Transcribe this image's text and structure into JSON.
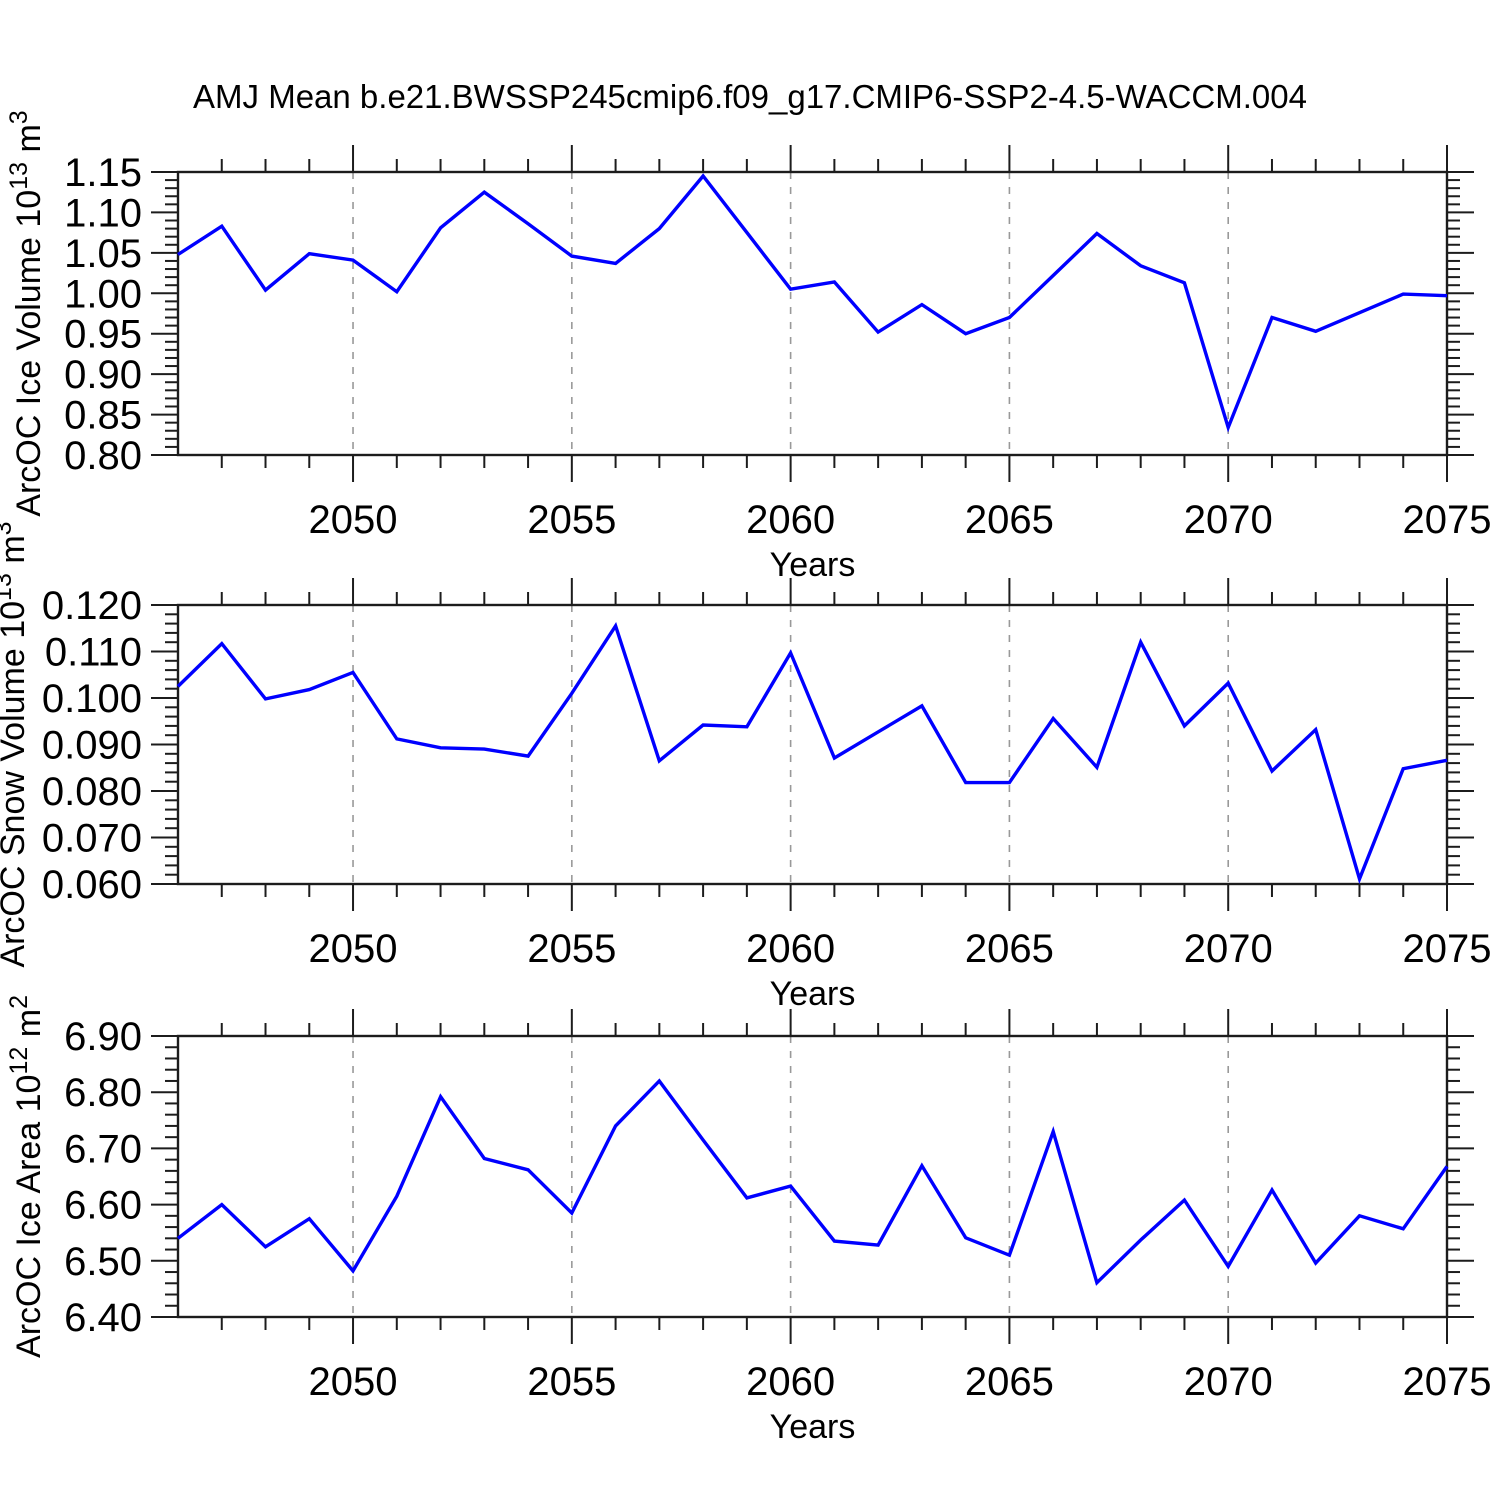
{
  "title": "AMJ Mean b.e21.BWSSP245cmip6.f09_g17.CMIP6-SSP2-4.5-WACCM.004",
  "line_color": "#0000ff",
  "chart_data": [
    {
      "type": "line",
      "series_name": "arcoc-ice-volume",
      "ylabel": "ArcOC Ice Volume 10^13 m^3",
      "ylabel_parts": [
        "ArcOC Ice Volume 10",
        "13",
        " m",
        "3"
      ],
      "xlabel": "Years",
      "x": [
        2046,
        2047,
        2048,
        2049,
        2050,
        2051,
        2052,
        2053,
        2054,
        2055,
        2056,
        2057,
        2058,
        2059,
        2060,
        2061,
        2062,
        2063,
        2064,
        2065,
        2066,
        2067,
        2068,
        2069,
        2070,
        2071,
        2072,
        2073,
        2074,
        2075
      ],
      "values": [
        1.048,
        1.083,
        1.004,
        1.049,
        1.041,
        1.002,
        1.081,
        1.125,
        1.086,
        1.046,
        1.037,
        1.08,
        1.145,
        1.075,
        1.005,
        1.014,
        0.952,
        0.986,
        0.95,
        0.97,
        1.022,
        1.074,
        1.034,
        1.013,
        0.834,
        0.97,
        0.953,
        0.976,
        0.999,
        0.997
      ],
      "xlim": [
        2046,
        2075
      ],
      "ylim": [
        0.8,
        1.15
      ],
      "xticks": [
        2050,
        2055,
        2060,
        2065,
        2070,
        2075
      ],
      "xtick_labels": [
        "2050",
        "2055",
        "2060",
        "2065",
        "2070",
        "2075"
      ],
      "x_minor_step": 1,
      "yticks": [
        0.8,
        0.85,
        0.9,
        0.95,
        1.0,
        1.05,
        1.1,
        1.15
      ],
      "ytick_labels": [
        "0.80",
        "0.85",
        "0.90",
        "0.95",
        "1.00",
        "1.05",
        "1.10",
        "1.15"
      ],
      "y_minor_step": 0.01,
      "grid": "vertical dashed at major x ticks",
      "line_color": "#0000ff"
    },
    {
      "type": "line",
      "series_name": "arcoc-snow-volume",
      "ylabel": "ArcOC Snow Volume 10^13 m^3",
      "ylabel_parts": [
        "ArcOC Snow Volume 10",
        "13",
        " m",
        "3"
      ],
      "xlabel": "Years",
      "x": [
        2046,
        2047,
        2048,
        2049,
        2050,
        2051,
        2052,
        2053,
        2054,
        2055,
        2056,
        2057,
        2058,
        2059,
        2060,
        2061,
        2062,
        2063,
        2064,
        2065,
        2066,
        2067,
        2068,
        2069,
        2070,
        2071,
        2072,
        2073,
        2074,
        2075
      ],
      "values": [
        0.1025,
        0.1117,
        0.0998,
        0.1018,
        0.1055,
        0.0912,
        0.0893,
        0.089,
        0.0875,
        0.101,
        0.1155,
        0.0865,
        0.0942,
        0.0938,
        0.1097,
        0.0871,
        0.0927,
        0.0983,
        0.0818,
        0.0818,
        0.0956,
        0.0851,
        0.112,
        0.094,
        0.1032,
        0.0843,
        0.0932,
        0.0611,
        0.0848,
        0.0866
      ],
      "xlim": [
        2046,
        2075
      ],
      "ylim": [
        0.06,
        0.12
      ],
      "xticks": [
        2050,
        2055,
        2060,
        2065,
        2070,
        2075
      ],
      "xtick_labels": [
        "2050",
        "2055",
        "2060",
        "2065",
        "2070",
        "2075"
      ],
      "x_minor_step": 1,
      "yticks": [
        0.06,
        0.07,
        0.08,
        0.09,
        0.1,
        0.11,
        0.12
      ],
      "ytick_labels": [
        "0.060",
        "0.070",
        "0.080",
        "0.090",
        "0.100",
        "0.110",
        "0.120"
      ],
      "y_minor_step": 0.002,
      "grid": "vertical dashed at major x ticks",
      "line_color": "#0000ff"
    },
    {
      "type": "line",
      "series_name": "arcoc-ice-area",
      "ylabel": "ArcOC Ice Area 10^12 m^2",
      "ylabel_parts": [
        "ArcOC Ice Area 10",
        "12",
        " m",
        "2"
      ],
      "xlabel": "Years",
      "x": [
        2046,
        2047,
        2048,
        2049,
        2050,
        2051,
        2052,
        2053,
        2054,
        2055,
        2056,
        2057,
        2058,
        2059,
        2060,
        2061,
        2062,
        2063,
        2064,
        2065,
        2066,
        2067,
        2068,
        2069,
        2070,
        2071,
        2072,
        2073,
        2074,
        2075
      ],
      "values": [
        6.54,
        6.6,
        6.525,
        6.575,
        6.482,
        6.615,
        6.792,
        6.682,
        6.662,
        6.585,
        6.74,
        6.82,
        6.715,
        6.612,
        6.633,
        6.535,
        6.528,
        6.669,
        6.541,
        6.51,
        6.73,
        6.461,
        6.537,
        6.608,
        6.49,
        6.626,
        6.496,
        6.58,
        6.557,
        6.668
      ],
      "xlim": [
        2046,
        2075
      ],
      "ylim": [
        6.4,
        6.9
      ],
      "xticks": [
        2050,
        2055,
        2060,
        2065,
        2070,
        2075
      ],
      "xtick_labels": [
        "2050",
        "2055",
        "2060",
        "2065",
        "2070",
        "2075"
      ],
      "x_minor_step": 1,
      "yticks": [
        6.4,
        6.5,
        6.6,
        6.7,
        6.8,
        6.9
      ],
      "ytick_labels": [
        "6.40",
        "6.50",
        "6.60",
        "6.70",
        "6.80",
        "6.90"
      ],
      "y_minor_step": 0.02,
      "grid": "vertical dashed at major x ticks",
      "line_color": "#0000ff"
    }
  ]
}
